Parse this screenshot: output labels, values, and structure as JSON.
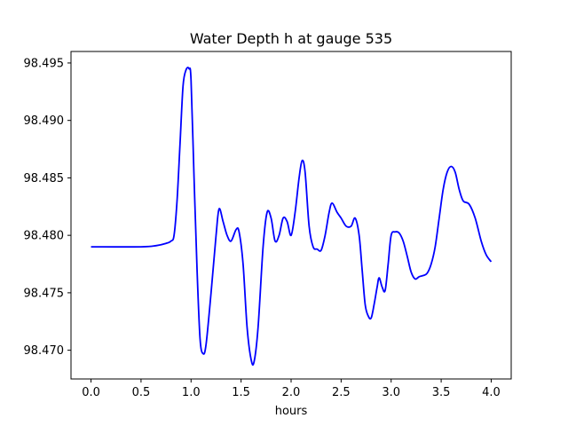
{
  "chart_data": {
    "type": "line",
    "title": "Water Depth h at gauge 535",
    "xlabel": "hours",
    "ylabel": "",
    "xlim": [
      -0.2,
      4.2
    ],
    "ylim": [
      98.4675,
      98.496
    ],
    "grid": false,
    "legend": "none",
    "xticks": [
      0.0,
      0.5,
      1.0,
      1.5,
      2.0,
      2.5,
      3.0,
      3.5,
      4.0
    ],
    "xtick_labels": [
      "0.0",
      "0.5",
      "1.0",
      "1.5",
      "2.0",
      "2.5",
      "3.0",
      "3.5",
      "4.0"
    ],
    "yticks": [
      98.47,
      98.475,
      98.48,
      98.485,
      98.49,
      98.495
    ],
    "ytick_labels": [
      "98.470",
      "98.475",
      "98.480",
      "98.485",
      "98.490",
      "98.495"
    ],
    "series": [
      {
        "color": "#0000ff",
        "x": [
          0.0,
          0.5,
          0.65,
          0.75,
          0.8,
          0.83,
          0.86,
          0.89,
          0.92,
          0.95,
          0.98,
          1.0,
          1.03,
          1.06,
          1.09,
          1.12,
          1.15,
          1.2,
          1.25,
          1.28,
          1.32,
          1.36,
          1.4,
          1.45,
          1.48,
          1.52,
          1.56,
          1.6,
          1.63,
          1.67,
          1.72,
          1.76,
          1.8,
          1.84,
          1.88,
          1.92,
          1.96,
          2.0,
          2.04,
          2.08,
          2.11,
          2.14,
          2.18,
          2.22,
          2.26,
          2.3,
          2.34,
          2.38,
          2.41,
          2.46,
          2.5,
          2.55,
          2.6,
          2.64,
          2.68,
          2.71,
          2.74,
          2.77,
          2.8,
          2.83,
          2.86,
          2.88,
          2.91,
          2.94,
          2.97,
          3.0,
          3.04,
          3.08,
          3.12,
          3.16,
          3.2,
          3.24,
          3.28,
          3.32,
          3.36,
          3.4,
          3.44,
          3.48,
          3.52,
          3.56,
          3.6,
          3.64,
          3.68,
          3.72,
          3.78,
          3.84,
          3.9,
          3.95,
          4.0
        ],
        "y": [
          98.479,
          98.479,
          98.4791,
          98.4793,
          98.4795,
          98.48,
          98.483,
          98.488,
          98.493,
          98.4944,
          98.4945,
          98.4935,
          98.485,
          98.477,
          98.471,
          98.4697,
          98.4705,
          98.475,
          98.48,
          98.4823,
          98.4812,
          98.48,
          98.4795,
          98.4805,
          98.4803,
          98.4775,
          98.472,
          98.4692,
          98.469,
          98.472,
          98.479,
          98.482,
          98.4815,
          98.4795,
          98.48,
          98.4815,
          98.4812,
          98.48,
          98.482,
          98.485,
          98.4865,
          98.4855,
          98.4808,
          98.479,
          98.4788,
          98.4787,
          98.48,
          98.482,
          98.4828,
          98.482,
          98.4815,
          98.4808,
          98.4808,
          98.4815,
          98.48,
          98.477,
          98.474,
          98.473,
          98.4728,
          98.474,
          98.4755,
          98.4763,
          98.4755,
          98.4752,
          98.4775,
          98.48,
          98.4803,
          98.4802,
          98.4795,
          98.4782,
          98.4768,
          98.4762,
          98.4764,
          98.4765,
          98.4767,
          98.4775,
          98.479,
          98.4815,
          98.484,
          98.4855,
          98.486,
          98.4855,
          98.484,
          98.483,
          98.4827,
          98.4815,
          98.4795,
          98.4783,
          98.4777
        ]
      }
    ]
  }
}
